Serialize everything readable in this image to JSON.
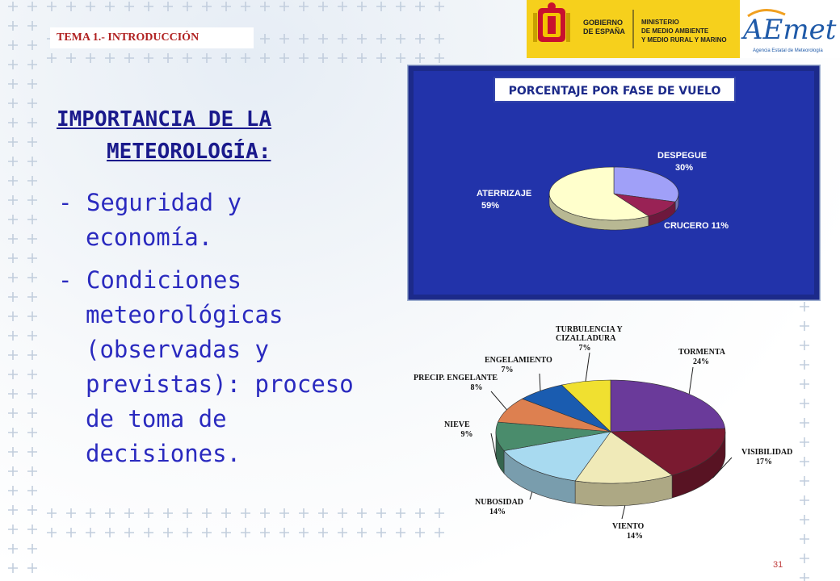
{
  "header": {
    "section_tag": "TEMA 1.- INTRODUCCIÓN",
    "gov_line1": "GOBIERNO",
    "gov_line2": "DE ESPAÑA",
    "ministry_line1": "MINISTERIO",
    "ministry_line2": "DE MEDIO AMBIENTE",
    "ministry_line3": "Y MEDIO RURAL Y MARINO",
    "aemet_logo": "AEmet",
    "aemet_subtitle": "Agencia Estatal de Meteorología"
  },
  "main": {
    "heading_line1": "IMPORTANCIA DE LA",
    "heading_line2": "METEOROLOGÍA:",
    "bullet1": [
      "- Seguridad y",
      "economía."
    ],
    "bullet2": [
      "- Condiciones",
      "meteorológicas",
      "(observadas y",
      "previstas): proceso",
      "de toma de",
      "decisiones."
    ]
  },
  "chart_data": [
    {
      "type": "pie",
      "title": "PORCENTAJE POR FASE DE VUELO",
      "labels": [
        "DESPEGUE",
        "CRUCERO",
        "ATERRIZAJE"
      ],
      "values": [
        30,
        11,
        59
      ],
      "value_labels": [
        "30%",
        "11%",
        "59%"
      ],
      "colors": [
        "#a0a0f8",
        "#992255",
        "#ffffcc"
      ],
      "background": "#2233aa"
    },
    {
      "type": "pie",
      "title": "",
      "labels": [
        "TORMENTA",
        "VISIBILIDAD",
        "VIENTO",
        "NUBOSIDAD",
        "NIEVE",
        "PRECIP. ENGELANTE",
        "ENGELAMIENTO",
        "TURBULENCIA Y CIZALLADURA"
      ],
      "label_lines": [
        [
          "TORMENTA"
        ],
        [
          "VISIBILIDAD"
        ],
        [
          "VIENTO"
        ],
        [
          "NUBOSIDAD"
        ],
        [
          "NIEVE"
        ],
        [
          "PRECIP. ENGELANTE"
        ],
        [
          "ENGELAMIENTO"
        ],
        [
          "TURBULENCIA Y",
          "CIZALLADURA"
        ]
      ],
      "values": [
        24,
        17,
        14,
        14,
        9,
        8,
        7,
        7
      ],
      "value_labels": [
        "24%",
        "17%",
        "14%",
        "14%",
        "9%",
        "8%",
        "7%",
        "7%"
      ],
      "colors": [
        "#6a3a9a",
        "#7a1a30",
        "#f0eab8",
        "#a8daf0",
        "#4a8c6c",
        "#dd8050",
        "#1a5cb0",
        "#f0e030"
      ]
    }
  ],
  "footer": {
    "page_number": "31"
  }
}
